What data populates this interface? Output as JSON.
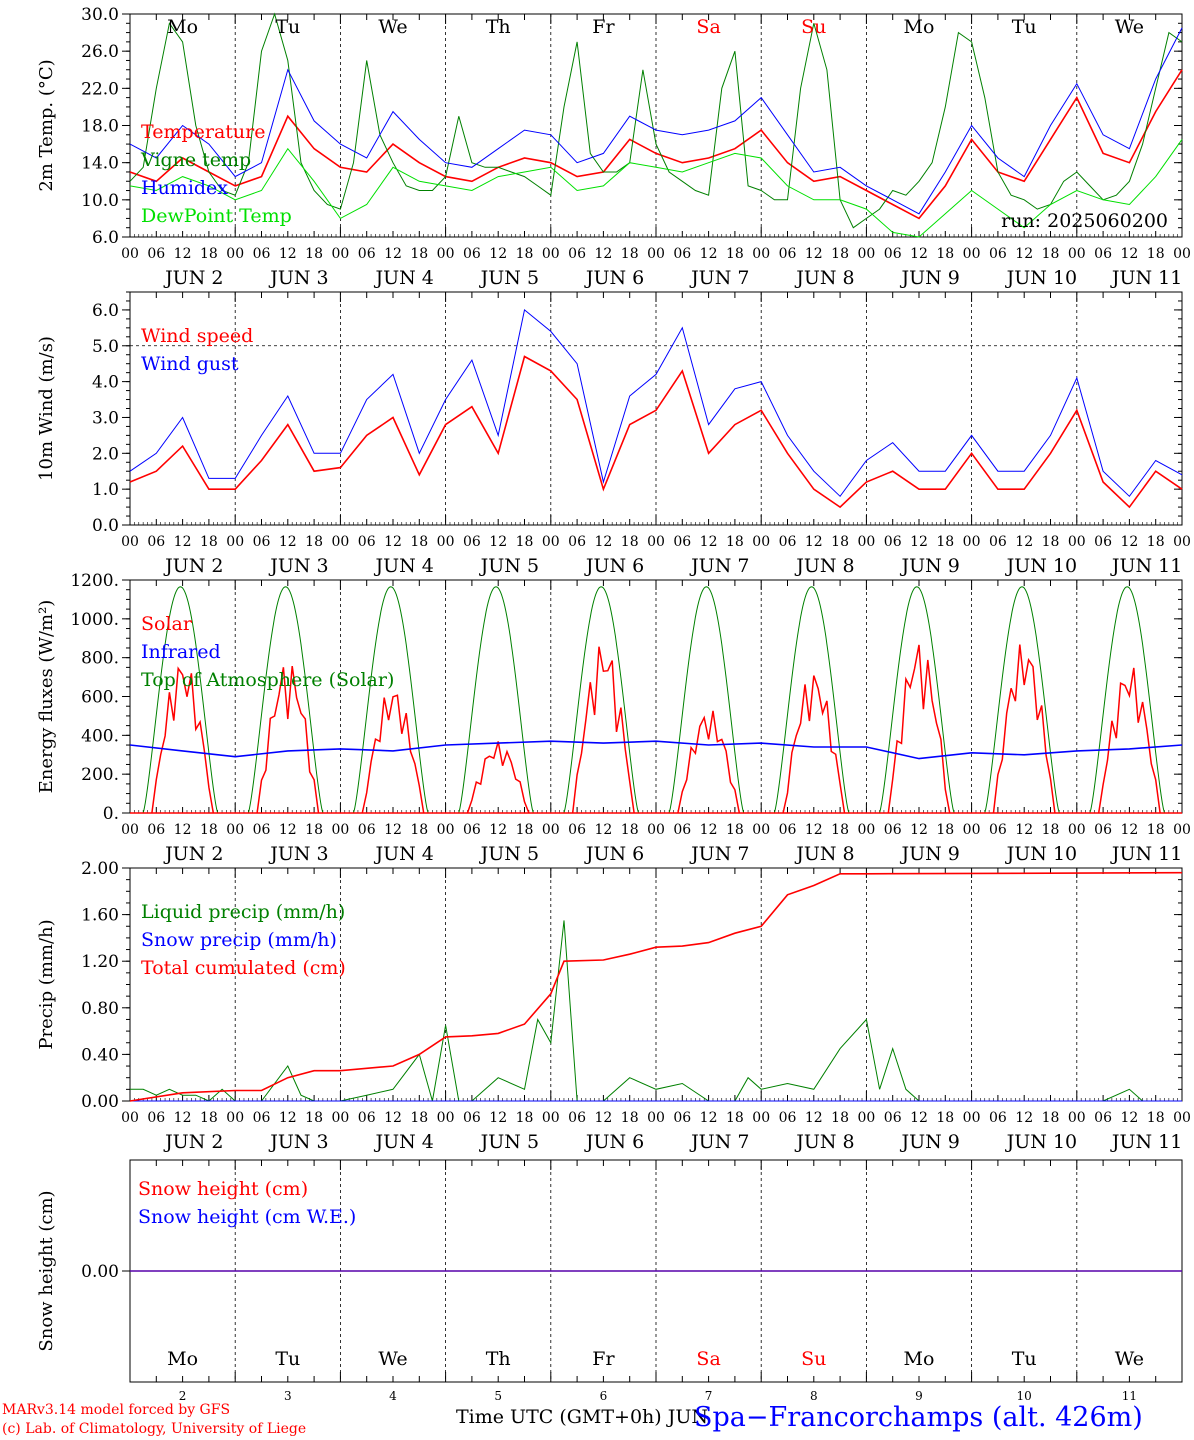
{
  "colors": {
    "red": "#ff0000",
    "green": "#008000",
    "blue": "#0000ff",
    "lightgreen": "#00e000",
    "black": "#000000"
  },
  "days": {
    "weekday_labels": [
      "Mo",
      "Tu",
      "We",
      "Th",
      "Fr",
      "Sa",
      "Su",
      "Mo",
      "Tu",
      "We"
    ],
    "weekend_flags": [
      false,
      false,
      false,
      false,
      false,
      true,
      true,
      false,
      false,
      false
    ],
    "date_labels": [
      "JUN  2",
      "JUN  3",
      "JUN  4",
      "JUN  5",
      "JUN  6",
      "JUN  7",
      "JUN  8",
      "JUN  9",
      "JUN 10",
      "JUN 11"
    ],
    "hour_ticks": [
      "00",
      "06",
      "12",
      "18"
    ],
    "bottom_day_numbers": [
      "2",
      "3",
      "4",
      "5",
      "6",
      "7",
      "8",
      "9",
      "10",
      "11"
    ]
  },
  "chart_data": [
    {
      "id": "temp",
      "type": "line",
      "ylabel": "2m Temp. (°C)",
      "ylim": [
        6,
        30
      ],
      "yticks": [
        "6.0",
        "10.0",
        "14.0",
        "18.0",
        "22.0",
        "26.0",
        "30.0"
      ],
      "yticks_values": [
        6,
        10,
        14,
        18,
        22,
        26,
        30
      ],
      "annotation": "run: 2025060200",
      "x_unit": "hours since JUN 2 00 UTC",
      "legend": [
        "Temperature",
        "Vigne temp",
        "Humidex",
        "DewPoint Temp"
      ],
      "series": [
        {
          "name": "Temperature",
          "color": "#ff0000",
          "x": [
            0,
            6,
            12,
            18,
            24,
            30,
            36,
            42,
            48,
            54,
            60,
            66,
            72,
            78,
            84,
            90,
            96,
            102,
            108,
            114,
            120,
            126,
            132,
            138,
            144,
            150,
            156,
            162,
            168,
            174,
            180,
            186,
            192,
            198,
            204,
            210,
            216,
            222,
            228,
            234,
            240
          ],
          "values": [
            13.0,
            12.0,
            14.5,
            13.0,
            11.5,
            12.5,
            19.0,
            15.5,
            13.5,
            13.0,
            16.0,
            14.0,
            12.5,
            12.0,
            13.5,
            14.5,
            14.0,
            12.5,
            13.0,
            16.5,
            15.0,
            14.0,
            14.5,
            15.5,
            17.5,
            14.0,
            12.0,
            12.5,
            11.0,
            9.5,
            8.0,
            11.5,
            16.5,
            13.0,
            12.0,
            16.5,
            21.0,
            15.0,
            14.0,
            19.5,
            24.0
          ]
        },
        {
          "name": "Vigne temp",
          "color": "#008000",
          "x": [
            0,
            3,
            6,
            9,
            12,
            15,
            18,
            21,
            24,
            27,
            30,
            33,
            36,
            39,
            42,
            45,
            48,
            51,
            54,
            57,
            60,
            63,
            66,
            69,
            72,
            75,
            78,
            81,
            84,
            87,
            90,
            93,
            96,
            99,
            102,
            105,
            108,
            111,
            114,
            117,
            120,
            123,
            126,
            129,
            132,
            135,
            138,
            141,
            144,
            147,
            150,
            153,
            156,
            159,
            162,
            165,
            168,
            171,
            174,
            177,
            180,
            183,
            186,
            189,
            192,
            195,
            198,
            201,
            204,
            207,
            210,
            213,
            216,
            219,
            222,
            225,
            228,
            231,
            234,
            237,
            240
          ],
          "values": [
            12.0,
            13.5,
            22.0,
            29.0,
            27.0,
            18.0,
            13.0,
            11.0,
            10.5,
            14.0,
            26.0,
            30.0,
            25.0,
            14.0,
            11.0,
            9.5,
            9.0,
            14.0,
            25.0,
            17.0,
            14.0,
            11.5,
            11.0,
            11.0,
            12.5,
            19.0,
            14.0,
            13.5,
            13.5,
            13.0,
            12.5,
            11.5,
            10.5,
            20.0,
            27.0,
            15.0,
            13.0,
            13.0,
            14.0,
            24.0,
            16.0,
            13.0,
            12.0,
            11.0,
            10.5,
            22.0,
            26.0,
            11.5,
            11.0,
            10.0,
            10.0,
            22.0,
            29.0,
            24.0,
            10.0,
            7.0,
            8.0,
            9.0,
            11.0,
            10.5,
            12.0,
            14.0,
            20.0,
            28.0,
            27.0,
            21.0,
            13.0,
            10.5,
            10.0,
            9.0,
            9.5,
            12.0,
            13.0,
            11.5,
            10.0,
            10.5,
            12.0,
            16.0,
            22.0,
            28.0,
            27.0
          ]
        },
        {
          "name": "Humidex",
          "color": "#0000ff",
          "x": [
            0,
            6,
            12,
            18,
            24,
            30,
            36,
            42,
            48,
            54,
            60,
            66,
            72,
            78,
            84,
            90,
            96,
            102,
            108,
            114,
            120,
            126,
            132,
            138,
            144,
            150,
            156,
            162,
            168,
            174,
            180,
            186,
            192,
            198,
            204,
            210,
            216,
            222,
            228,
            234,
            240
          ],
          "values": [
            16.0,
            14.5,
            18.0,
            16.0,
            12.5,
            14.0,
            24.0,
            18.5,
            16.0,
            14.5,
            19.5,
            16.5,
            14.0,
            13.5,
            15.5,
            17.5,
            17.0,
            14.0,
            15.0,
            19.0,
            17.5,
            17.0,
            17.5,
            18.5,
            21.0,
            17.0,
            13.0,
            13.5,
            11.5,
            10.0,
            8.5,
            13.0,
            18.0,
            14.5,
            12.5,
            18.0,
            22.5,
            17.0,
            15.5,
            23.0,
            28.5
          ]
        },
        {
          "name": "DewPoint Temp",
          "color": "#00e000",
          "x": [
            0,
            6,
            12,
            18,
            24,
            30,
            36,
            42,
            48,
            54,
            60,
            66,
            72,
            78,
            84,
            90,
            96,
            102,
            108,
            114,
            120,
            126,
            132,
            138,
            144,
            150,
            156,
            162,
            168,
            174,
            180,
            186,
            192,
            198,
            204,
            210,
            216,
            222,
            228,
            234,
            240
          ],
          "values": [
            11.5,
            11.0,
            12.5,
            11.5,
            10.0,
            11.0,
            15.5,
            12.0,
            8.0,
            9.5,
            13.5,
            12.0,
            11.5,
            11.0,
            12.5,
            13.0,
            13.5,
            11.0,
            11.5,
            14.0,
            13.5,
            13.0,
            14.0,
            15.0,
            14.5,
            11.5,
            10.0,
            10.0,
            9.0,
            6.5,
            6.0,
            8.5,
            11.0,
            9.0,
            7.0,
            9.5,
            11.0,
            10.0,
            9.5,
            12.5,
            16.5
          ]
        }
      ]
    },
    {
      "id": "wind",
      "type": "line",
      "ylabel": "10m Wind (m/s)",
      "ylim": [
        0,
        6.5
      ],
      "yticks": [
        "0.0",
        "1.0",
        "2.0",
        "3.0",
        "4.0",
        "5.0",
        "6.0"
      ],
      "yticks_values": [
        0,
        1,
        2,
        3,
        4,
        5,
        6
      ],
      "dashed_y": 5.0,
      "x_unit": "hours since JUN 2 00 UTC",
      "legend": [
        "Wind speed",
        "Wind gust"
      ],
      "series": [
        {
          "name": "Wind speed",
          "color": "#ff0000",
          "x": [
            0,
            6,
            12,
            18,
            24,
            30,
            36,
            42,
            48,
            54,
            60,
            66,
            72,
            78,
            84,
            90,
            96,
            102,
            108,
            114,
            120,
            126,
            132,
            138,
            144,
            150,
            156,
            162,
            168,
            174,
            180,
            186,
            192,
            198,
            204,
            210,
            216,
            222,
            228,
            234,
            240
          ],
          "values": [
            1.2,
            1.5,
            2.2,
            1.0,
            1.0,
            1.8,
            2.8,
            1.5,
            1.6,
            2.5,
            3.0,
            1.4,
            2.8,
            3.3,
            2.0,
            4.7,
            4.3,
            3.5,
            1.0,
            2.8,
            3.2,
            4.3,
            2.0,
            2.8,
            3.2,
            2.0,
            1.0,
            0.5,
            1.2,
            1.5,
            1.0,
            1.0,
            2.0,
            1.0,
            1.0,
            2.0,
            3.2,
            1.2,
            0.5,
            1.5,
            1.0
          ]
        },
        {
          "name": "Wind gust",
          "color": "#0000ff",
          "x": [
            0,
            6,
            12,
            18,
            24,
            30,
            36,
            42,
            48,
            54,
            60,
            66,
            72,
            78,
            84,
            90,
            96,
            102,
            108,
            114,
            120,
            126,
            132,
            138,
            144,
            150,
            156,
            162,
            168,
            174,
            180,
            186,
            192,
            198,
            204,
            210,
            216,
            222,
            228,
            234,
            240
          ],
          "values": [
            1.5,
            2.0,
            3.0,
            1.3,
            1.3,
            2.5,
            3.6,
            2.0,
            2.0,
            3.5,
            4.2,
            2.0,
            3.5,
            4.6,
            2.5,
            6.0,
            5.4,
            4.5,
            1.2,
            3.6,
            4.2,
            5.5,
            2.8,
            3.8,
            4.0,
            2.5,
            1.5,
            0.8,
            1.8,
            2.3,
            1.5,
            1.5,
            2.5,
            1.5,
            1.5,
            2.5,
            4.1,
            1.5,
            0.8,
            1.8,
            1.4
          ]
        }
      ]
    },
    {
      "id": "energy",
      "type": "line",
      "ylabel": "Energy fluxes (W/m²)",
      "ylim": [
        0,
        1200
      ],
      "yticks": [
        "0.",
        "200.",
        "400.",
        "600.",
        "800.",
        "1000.",
        "1200."
      ],
      "yticks_values": [
        0,
        200,
        400,
        600,
        800,
        1000,
        1200
      ],
      "x_unit": "hours since JUN 2 00 UTC",
      "legend": [
        "Solar",
        "Infrared",
        "Top of Atmosphere (Solar)"
      ],
      "series": [
        {
          "name": "Top of Atmosphere (Solar)",
          "color": "#008000",
          "peak": 1165,
          "sunrise_hour": 3,
          "sunset_hour": 20
        },
        {
          "name": "Solar",
          "color": "#ff0000",
          "daily_peaks": [
            800,
            790,
            660,
            370,
            890,
            540,
            740,
            890,
            890,
            770
          ]
        },
        {
          "name": "Infrared",
          "color": "#0000ff",
          "x": [
            0,
            12,
            24,
            36,
            48,
            60,
            72,
            84,
            96,
            108,
            120,
            132,
            144,
            156,
            168,
            180,
            192,
            204,
            216,
            228,
            240
          ],
          "values": [
            350,
            320,
            290,
            320,
            330,
            320,
            350,
            360,
            370,
            360,
            370,
            350,
            360,
            340,
            340,
            280,
            310,
            300,
            320,
            330,
            350
          ]
        }
      ]
    },
    {
      "id": "precip",
      "type": "line",
      "ylabel": "Precip (mm/h)",
      "ylim": [
        0,
        2.0
      ],
      "yticks": [
        "0.00",
        "0.40",
        "0.80",
        "1.20",
        "1.60",
        "2.00"
      ],
      "yticks_values": [
        0,
        0.4,
        0.8,
        1.2,
        1.6,
        2.0
      ],
      "x_unit": "hours since JUN 2 00 UTC",
      "legend": [
        "Liquid precip (mm/h)",
        "Snow precip (mm/h)",
        "Total cumulated (cm)"
      ],
      "series": [
        {
          "name": "Liquid precip (mm/h)",
          "color": "#008000",
          "x": [
            0,
            3,
            6,
            9,
            12,
            15,
            18,
            21,
            24,
            30,
            36,
            39,
            42,
            48,
            54,
            60,
            66,
            69,
            72,
            75,
            78,
            84,
            90,
            93,
            96,
            99,
            102,
            105,
            108,
            114,
            120,
            126,
            132,
            135,
            138,
            141,
            144,
            150,
            156,
            162,
            168,
            171,
            174,
            177,
            180,
            186,
            192,
            198,
            204,
            210,
            216,
            222,
            228,
            231,
            234,
            240
          ],
          "values": [
            0.1,
            0.1,
            0.05,
            0.1,
            0.05,
            0.05,
            0.0,
            0.1,
            0.0,
            0.0,
            0.3,
            0.05,
            0.0,
            0.0,
            0.05,
            0.1,
            0.4,
            0.0,
            0.65,
            0.0,
            0.0,
            0.2,
            0.1,
            0.7,
            0.5,
            1.55,
            0.0,
            0.0,
            0.0,
            0.2,
            0.1,
            0.15,
            0.0,
            0.0,
            0.0,
            0.2,
            0.1,
            0.15,
            0.1,
            0.45,
            0.7,
            0.1,
            0.45,
            0.1,
            0.0,
            0.0,
            0.0,
            0.0,
            0.0,
            0.0,
            0.0,
            0.0,
            0.1,
            0.0,
            0.0,
            0.0
          ]
        },
        {
          "name": "Snow precip (mm/h)",
          "color": "#0000ff",
          "x": [
            0,
            240
          ],
          "values": [
            0,
            0
          ]
        },
        {
          "name": "Total cumulated (cm)",
          "color": "#ff0000",
          "x": [
            0,
            12,
            24,
            30,
            36,
            42,
            48,
            60,
            66,
            72,
            78,
            84,
            90,
            96,
            99,
            108,
            114,
            120,
            126,
            132,
            138,
            144,
            150,
            156,
            162,
            168,
            240
          ],
          "values": [
            0.0,
            0.07,
            0.09,
            0.09,
            0.2,
            0.26,
            0.26,
            0.3,
            0.4,
            0.55,
            0.56,
            0.58,
            0.66,
            0.92,
            1.2,
            1.21,
            1.26,
            1.32,
            1.33,
            1.36,
            1.44,
            1.5,
            1.77,
            1.85,
            1.95,
            1.95,
            1.96
          ]
        }
      ]
    },
    {
      "id": "snow",
      "type": "line",
      "ylabel": "Snow height (cm)",
      "ylim": [
        -1,
        1
      ],
      "yticks": [
        "0.00"
      ],
      "yticks_values": [
        0
      ],
      "x_unit": "hours since JUN 2 00 UTC",
      "legend": [
        "Snow height (cm)",
        "Snow height (cm W.E.)"
      ],
      "series": [
        {
          "name": "Snow height (cm)",
          "color": "#ff0000",
          "x": [
            0,
            240
          ],
          "values": [
            0,
            0
          ]
        },
        {
          "name": "Snow height (cm W.E.)",
          "color": "#0000ff",
          "x": [
            0,
            240
          ],
          "values": [
            0,
            0
          ]
        }
      ]
    }
  ],
  "footer": {
    "model_line": "MARv3.14 model forced by GFS",
    "copyright_line": "(c) Lab. of Climatology, University of Liege",
    "time_label": "Time UTC (GMT+0h) JUN",
    "station_label": "Spa−Francorchamps (alt. 426m)"
  }
}
